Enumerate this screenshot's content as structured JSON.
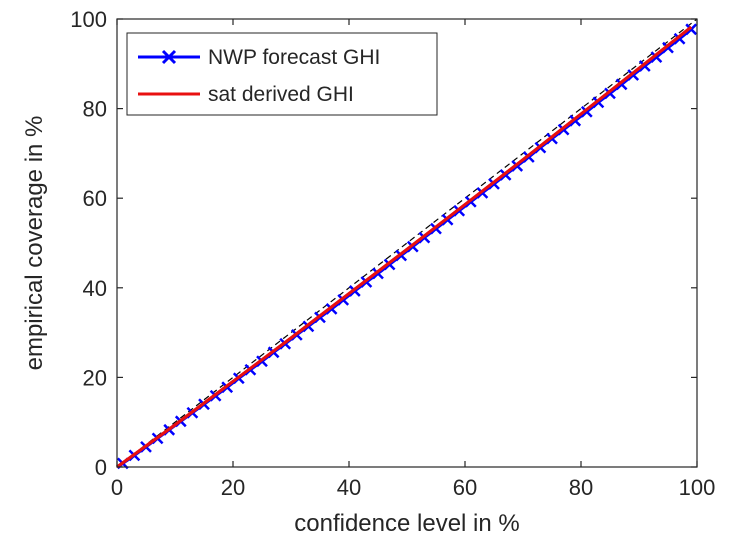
{
  "chart_data": {
    "type": "line",
    "title": "",
    "xlabel": "confidence level in %",
    "ylabel": "empirical coverage in %",
    "xlim": [
      0,
      100
    ],
    "ylim": [
      0,
      100
    ],
    "xticks": [
      0,
      20,
      40,
      60,
      80,
      100
    ],
    "yticks": [
      0,
      20,
      40,
      60,
      80,
      100
    ],
    "grid": false,
    "legend_position": "top-left",
    "series": [
      {
        "name": "NWP forecast GHI",
        "color": "#0000ff",
        "marker": "x",
        "x": [
          1,
          3,
          5,
          7,
          9,
          11,
          13,
          15,
          17,
          19,
          21,
          23,
          25,
          27,
          29,
          31,
          33,
          35,
          37,
          39,
          41,
          43,
          45,
          47,
          49,
          51,
          53,
          55,
          57,
          59,
          61,
          63,
          65,
          67,
          69,
          71,
          73,
          75,
          77,
          79,
          81,
          83,
          85,
          87,
          89,
          91,
          93,
          95,
          97,
          99
        ],
        "y": [
          0.8,
          2.6,
          4.5,
          6.4,
          8.3,
          10.2,
          12.1,
          14.0,
          15.9,
          17.8,
          19.8,
          21.7,
          23.6,
          25.6,
          27.5,
          29.5,
          31.4,
          33.4,
          35.3,
          37.3,
          39.3,
          41.3,
          43.2,
          45.2,
          47.2,
          49.2,
          51.2,
          53.2,
          55.2,
          57.2,
          59.2,
          61.2,
          63.2,
          65.2,
          67.2,
          69.2,
          71.3,
          73.3,
          75.3,
          77.3,
          79.3,
          81.4,
          83.4,
          85.4,
          87.5,
          89.5,
          91.5,
          93.6,
          95.6,
          97.7
        ]
      },
      {
        "name": "sat derived GHI",
        "color": "#e81010",
        "marker": "none",
        "x": [
          0,
          10,
          20,
          30,
          40,
          50,
          60,
          70,
          80,
          90,
          99
        ],
        "y": [
          0,
          9.4,
          19.1,
          28.8,
          38.7,
          48.6,
          58.6,
          68.6,
          78.8,
          89.0,
          98.2
        ]
      }
    ]
  }
}
